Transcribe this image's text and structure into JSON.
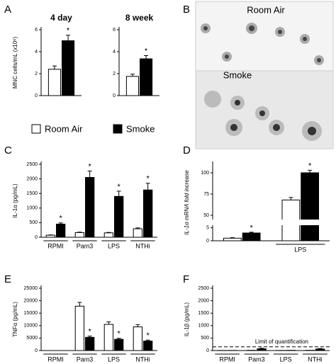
{
  "image_panel": {
    "panel": "B",
    "labels": [
      "Room Air",
      "Smoke"
    ]
  },
  "legend": [
    {
      "name": "Room Air",
      "color": "#ffffff"
    },
    {
      "name": "Smoke",
      "color": "#000000"
    }
  ],
  "chart_data": [
    {
      "type": "bar",
      "panel": "A",
      "title": "4 day",
      "ylabel": "MNC cells/mL (x10⁶)",
      "categories": [
        null
      ],
      "ylim": [
        0,
        6
      ],
      "yticks": [
        0,
        2,
        4,
        6
      ],
      "series": [
        {
          "color": "#ffffff",
          "values": [
            2.4
          ],
          "errors": [
            0.3
          ]
        },
        {
          "color": "#000000",
          "values": [
            5.0
          ],
          "errors": [
            0.5
          ],
          "markers": [
            "*"
          ]
        }
      ]
    },
    {
      "type": "bar",
      "title": "8 week",
      "categories": [
        null
      ],
      "ylim": [
        0,
        6
      ],
      "yticks": [
        0,
        2,
        4,
        6
      ],
      "series": [
        {
          "color": "#ffffff",
          "values": [
            1.75
          ],
          "errors": [
            0.2
          ]
        },
        {
          "color": "#000000",
          "values": [
            3.35
          ],
          "errors": [
            0.3
          ],
          "markers": [
            "*"
          ]
        }
      ]
    },
    {
      "type": "bar",
      "panel": "C",
      "ylabel": "IL-1α (pg/mL)",
      "categories": [
        "RPMI",
        "Pam3",
        "LPS",
        "NTHi"
      ],
      "ylim": [
        0,
        2500
      ],
      "yticks": [
        0,
        500,
        1000,
        1500,
        2000,
        2500
      ],
      "series": [
        {
          "color": "#ffffff",
          "values": [
            70,
            160,
            150,
            290
          ],
          "errors": [
            10,
            15,
            15,
            30
          ]
        },
        {
          "color": "#000000",
          "values": [
            450,
            2050,
            1400,
            1620
          ],
          "errors": [
            40,
            220,
            180,
            230
          ],
          "markers": [
            "*",
            "*",
            "*",
            "*"
          ]
        }
      ]
    },
    {
      "type": "bar",
      "panel": "D",
      "ylabel": "IL-1α mRNA fold increase",
      "categories": [
        null,
        "LPS"
      ],
      "ylim": [
        0,
        110
      ],
      "axis_break": [
        6,
        45
      ],
      "yticks": [
        0,
        5,
        50,
        75,
        100
      ],
      "series": [
        {
          "color": "#ffffff",
          "values": [
            1,
            68
          ],
          "errors": [
            0.2,
            3
          ]
        },
        {
          "color": "#000000",
          "values": [
            3,
            100
          ],
          "errors": [
            0.3,
            3
          ],
          "markers": [
            "*",
            "*"
          ]
        }
      ]
    },
    {
      "type": "bar",
      "panel": "E",
      "ylabel": "TNFα (pg/mL)",
      "categories": [
        "RPMI",
        "Pam3",
        "LPS",
        "NTHi"
      ],
      "ylim": [
        0,
        25000
      ],
      "yticks": [
        0,
        5000,
        10000,
        15000,
        20000,
        25000
      ],
      "series": [
        {
          "color": "#ffffff",
          "values": [
            0,
            17800,
            10500,
            9500
          ],
          "errors": [
            0,
            1500,
            1000,
            900
          ]
        },
        {
          "color": "#000000",
          "values": [
            0,
            5300,
            4500,
            3800
          ],
          "errors": [
            0,
            500,
            400,
            400
          ],
          "markers": [
            null,
            "*",
            "*",
            "*"
          ]
        }
      ]
    },
    {
      "type": "bar",
      "panel": "F",
      "ylabel": "IL-1β (pg/mL)",
      "categories": [
        "RPMI",
        "Pam3",
        "LPS",
        "NTHi"
      ],
      "ylim": [
        0,
        2500
      ],
      "yticks": [
        0,
        500,
        1000,
        1500,
        2000,
        2500
      ],
      "reference_line": {
        "value": 150,
        "label": "Limit of quantification"
      },
      "series": [
        {
          "color": "#ffffff",
          "values": [
            5,
            10,
            5,
            10
          ],
          "errors": [
            0,
            0,
            0,
            0
          ]
        },
        {
          "color": "#000000",
          "values": [
            5,
            70,
            10,
            60
          ],
          "errors": [
            0,
            20,
            0,
            20
          ]
        }
      ]
    }
  ]
}
